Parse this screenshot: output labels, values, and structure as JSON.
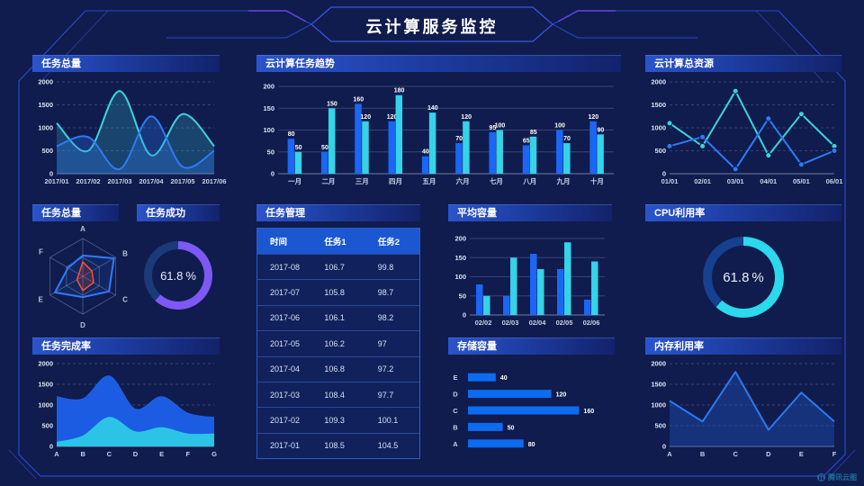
{
  "title": "云计算服务监控",
  "logo_text": "腾讯云图",
  "colors": {
    "background": "#101c4d",
    "frame_line": "#2b50dd",
    "accent_purple": "#7146ee",
    "bar_blue": "#1b66f5",
    "bar_cyan": "#35d2e8",
    "line_blue": "#2d7bf7",
    "line_cyan": "#3cd4de",
    "gauge_purple": "#7d58f5",
    "gauge_cyan": "#2bd8ec",
    "table_header": "#1a57d0"
  },
  "chart_data": [
    {
      "id": "task_total_line",
      "type": "line",
      "title": "任务总量",
      "x": [
        "2017/01",
        "2017/02",
        "2017/03",
        "2017/04",
        "2017/05",
        "2017/06"
      ],
      "ylim": [
        0,
        2000
      ],
      "yticks": [
        0,
        500,
        1000,
        1500,
        2000
      ],
      "grid": "dashed",
      "smooth": true,
      "markers": false,
      "legend": "none",
      "series": [
        {
          "name": "series-cyan",
          "color": "#3cd4de",
          "area": true,
          "fill_opacity": 0.22,
          "values": [
            1100,
            500,
            1800,
            400,
            1300,
            600
          ]
        },
        {
          "name": "series-blue",
          "color": "#2d7bf7",
          "area": true,
          "fill_opacity": 0.28,
          "values": [
            600,
            800,
            100,
            1250,
            150,
            500
          ]
        }
      ]
    },
    {
      "id": "task_trend",
      "type": "bar",
      "title": "云计算任务趋势",
      "categories": [
        "一月",
        "二月",
        "三月",
        "四月",
        "五月",
        "六月",
        "七月",
        "八月",
        "九月",
        "十月"
      ],
      "ylim": [
        0,
        200
      ],
      "yticks": [
        0,
        50,
        100,
        150,
        200
      ],
      "grid": "solid",
      "show_values": true,
      "legend": "none",
      "series": [
        {
          "name": "series-blue",
          "color": "#1b66f5",
          "values": [
            80,
            50,
            160,
            120,
            40,
            70,
            95,
            65,
            100,
            120
          ]
        },
        {
          "name": "series-cyan",
          "color": "#35d2e8",
          "values": [
            50,
            150,
            120,
            180,
            140,
            120,
            100,
            85,
            70,
            90
          ]
        }
      ]
    },
    {
      "id": "total_resources",
      "type": "line",
      "title": "云计算总资源",
      "x": [
        "01/01",
        "02/01",
        "03/01",
        "04/01",
        "05/01",
        "06/01"
      ],
      "ylim": [
        0,
        2000
      ],
      "yticks": [
        0,
        500,
        1000,
        1500,
        2000
      ],
      "grid": "dashed",
      "smooth": false,
      "markers": true,
      "legend": "none",
      "series": [
        {
          "name": "series-cyan",
          "color": "#3cd4de",
          "area": false,
          "values": [
            1100,
            600,
            1800,
            400,
            1300,
            600
          ]
        },
        {
          "name": "series-blue",
          "color": "#2d7bf7",
          "area": false,
          "values": [
            600,
            800,
            100,
            1200,
            200,
            500
          ]
        }
      ]
    },
    {
      "id": "task_total_radar",
      "type": "radar",
      "title": "任务总量",
      "indicators": [
        "A",
        "B",
        "C",
        "D",
        "E",
        "F"
      ],
      "max": 100,
      "series": [
        {
          "name": "radar-blue",
          "color": "#2f7bff",
          "fill_opacity": 0.1,
          "values": [
            55,
            95,
            80,
            55,
            85,
            45
          ]
        },
        {
          "name": "radar-orange",
          "color": "#ff4f2e",
          "fill_opacity": 0.18,
          "values": [
            38,
            28,
            33,
            38,
            18,
            12
          ]
        }
      ]
    },
    {
      "id": "task_success",
      "type": "gauge",
      "title": "任务成功",
      "value": "61.8",
      "unit": "%",
      "color": "#7d58f5",
      "track": "#1b3a78"
    },
    {
      "id": "task_management",
      "type": "table",
      "title": "任务管理",
      "columns": [
        "时间",
        "任务1",
        "任务2"
      ],
      "rows": [
        [
          "2017-08",
          "106.7",
          "99.8"
        ],
        [
          "2017-07",
          "105.8",
          "98.7"
        ],
        [
          "2017-06",
          "106.1",
          "98.2"
        ],
        [
          "2017-05",
          "106.2",
          "97"
        ],
        [
          "2017-04",
          "106.8",
          "97.2"
        ],
        [
          "2017-03",
          "108.4",
          "97.7"
        ],
        [
          "2017-02",
          "109.3",
          "100.1"
        ],
        [
          "2017-01",
          "108.5",
          "104.5"
        ]
      ]
    },
    {
      "id": "avg_capacity",
      "type": "bar",
      "title": "平均容量",
      "categories": [
        "02/02",
        "02/03",
        "02/04",
        "02/05",
        "02/06"
      ],
      "ylim": [
        0,
        200
      ],
      "yticks": [
        0,
        50,
        100,
        150,
        200
      ],
      "grid": "solid",
      "show_values": false,
      "legend": "none",
      "series": [
        {
          "name": "series-blue",
          "color": "#1b66f5",
          "values": [
            80,
            50,
            160,
            120,
            40
          ]
        },
        {
          "name": "series-cyan",
          "color": "#35d2e8",
          "values": [
            50,
            150,
            120,
            190,
            140
          ]
        }
      ]
    },
    {
      "id": "cpu_usage",
      "type": "gauge",
      "title": "CPU利用率",
      "value": "61.8",
      "unit": "%",
      "color": "#2bd8ec",
      "track": "#15418f"
    },
    {
      "id": "task_completion",
      "type": "line",
      "title": "任务完成率",
      "x": [
        "A",
        "B",
        "C",
        "D",
        "E",
        "F",
        "G"
      ],
      "ylim": [
        0,
        2000
      ],
      "yticks": [
        0,
        500,
        1000,
        1500,
        2000
      ],
      "grid": "dashed",
      "smooth": true,
      "markers": false,
      "legend": "none",
      "series": [
        {
          "name": "area-blue",
          "color": "#1e60ea",
          "area": true,
          "fill_opacity": 0.95,
          "stroke_width": 1,
          "values": [
            1200,
            1150,
            1700,
            900,
            1200,
            800,
            700
          ]
        },
        {
          "name": "area-cyan",
          "color": "#2cc8e6",
          "area": true,
          "fill_opacity": 0.95,
          "stroke_width": 1,
          "values": [
            100,
            250,
            700,
            350,
            450,
            300,
            300
          ]
        }
      ]
    },
    {
      "id": "storage_capacity",
      "type": "hbar",
      "title": "存储容量",
      "categories": [
        "E",
        "D",
        "C",
        "B",
        "A"
      ],
      "values": [
        40,
        120,
        160,
        50,
        80
      ],
      "xmax": 175,
      "color": "#0d6bf0"
    },
    {
      "id": "memory_usage",
      "type": "line",
      "title": "内存利用率",
      "x": [
        "A",
        "B",
        "C",
        "D",
        "E",
        "F"
      ],
      "ylim": [
        0,
        2000
      ],
      "yticks": [
        0,
        500,
        1000,
        1500,
        2000
      ],
      "grid": "dashed",
      "smooth": false,
      "markers": false,
      "legend": "none",
      "series": [
        {
          "name": "series-blue",
          "color": "#2c78f5",
          "area": true,
          "fill_color": "#1e54c0",
          "fill_opacity": 0.4,
          "values": [
            1100,
            600,
            1800,
            400,
            1300,
            600
          ]
        }
      ]
    }
  ]
}
